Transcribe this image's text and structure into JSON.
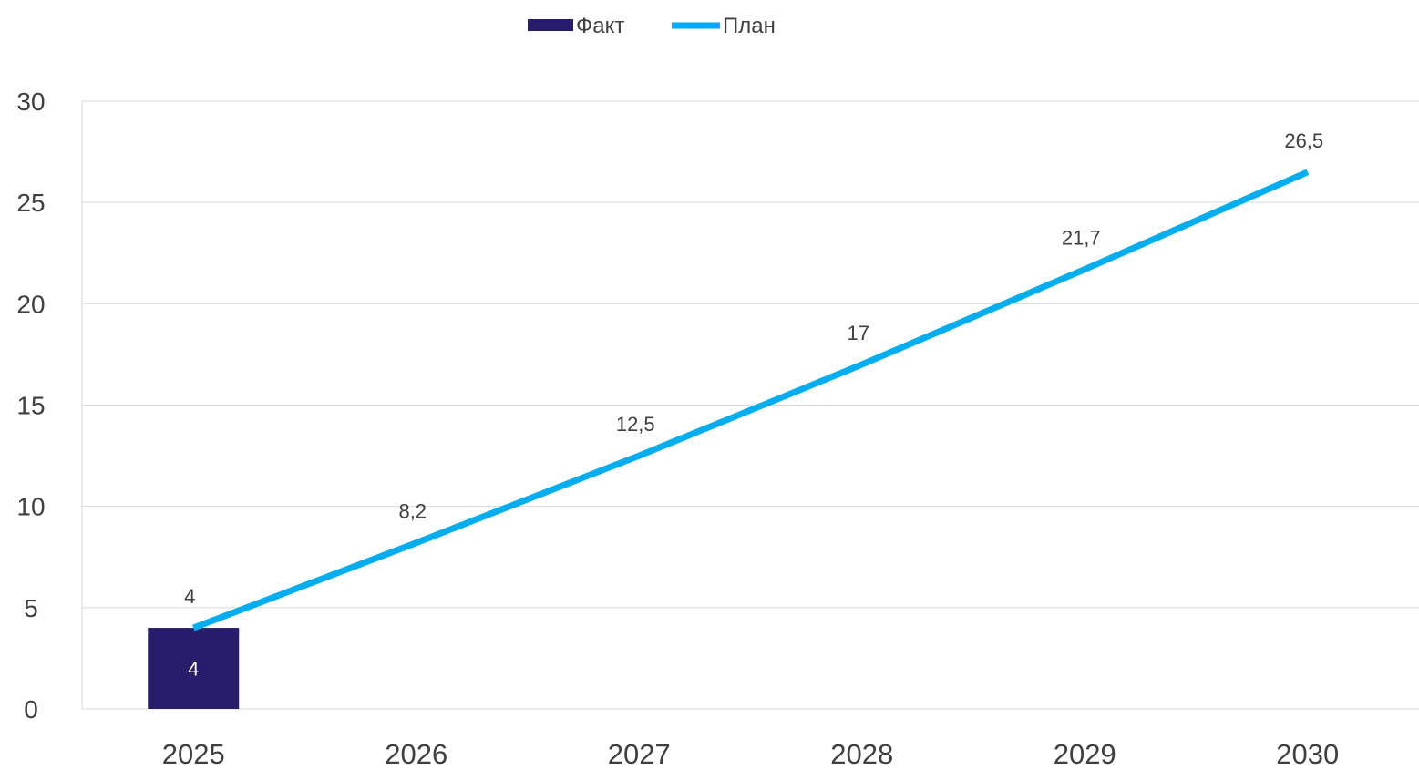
{
  "chart_data": {
    "type": "bar",
    "categories": [
      "2025",
      "2026",
      "2027",
      "2028",
      "2029",
      "2030"
    ],
    "series": [
      {
        "name": "Факт",
        "type": "bar",
        "values": [
          4,
          null,
          null,
          null,
          null,
          null
        ],
        "labels": [
          "4",
          "",
          "",
          "",
          "",
          ""
        ],
        "color": "#271d6b"
      },
      {
        "name": "План",
        "type": "line",
        "values": [
          4,
          8.2,
          12.5,
          17,
          21.7,
          26.5
        ],
        "labels": [
          "4",
          "8,2",
          "12,5",
          "17",
          "21,7",
          "26,5"
        ],
        "color": "#00aeef"
      }
    ],
    "ylim": [
      0,
      30
    ],
    "yticks": [
      "0",
      "5",
      "10",
      "15",
      "20",
      "25",
      "30"
    ],
    "grid": true,
    "legend_position": "top-center",
    "title": "",
    "xlabel": "",
    "ylabel": ""
  }
}
